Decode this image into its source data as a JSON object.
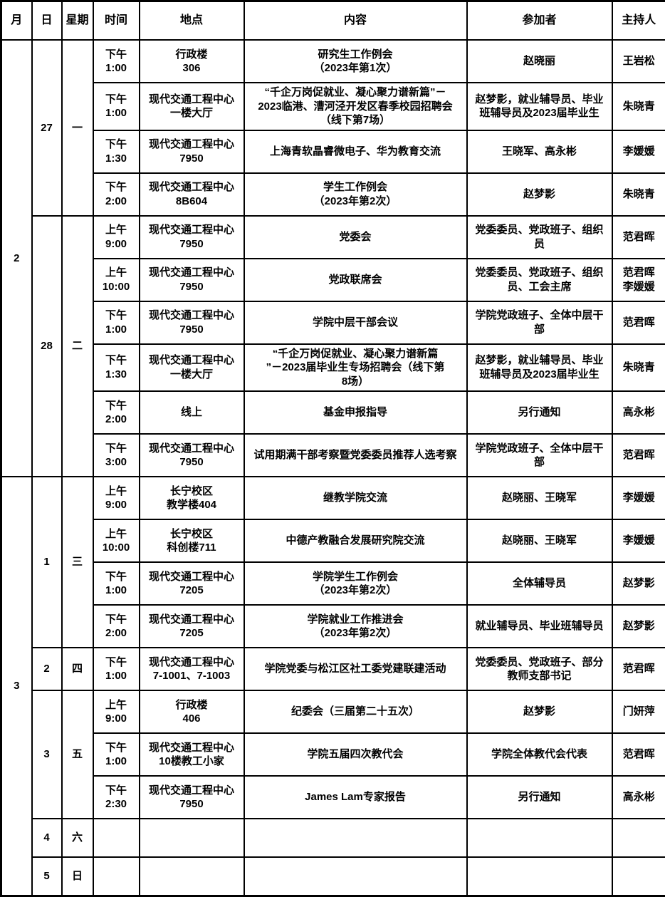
{
  "headers": [
    "月",
    "日",
    "星期",
    "时间",
    "地点",
    "内容",
    "参加者",
    "主持人"
  ],
  "months": [
    {
      "label": "2"
    },
    {
      "label": "3"
    }
  ],
  "days": [
    {
      "day": "27",
      "weekday": "一"
    },
    {
      "day": "28",
      "weekday": "二"
    },
    {
      "day": "1",
      "weekday": "三"
    },
    {
      "day": "2",
      "weekday": "四"
    },
    {
      "day": "3",
      "weekday": "五"
    },
    {
      "day": "4",
      "weekday": "六"
    },
    {
      "day": "5",
      "weekday": "日"
    }
  ],
  "rows": [
    {
      "time": "下午\n1:00",
      "location": "行政楼\n306",
      "content": "研究生工作例会\n（2023年第1次）",
      "participants": "赵晓丽",
      "host": "王岩松"
    },
    {
      "time": "下午\n1:00",
      "location": "现代交通工程中心\n一楼大厅",
      "content": "“千企万岗促就业、凝心聚力谱新篇”－\n2023临港、漕河泾开发区春季校园招聘会\n（线下第7场）",
      "participants": "赵梦影，就业辅导员、毕业\n班辅导员及2023届毕业生",
      "host": "朱晓青"
    },
    {
      "time": "下午\n1:30",
      "location": "现代交通工程中心\n7950",
      "content": "上海青软晶睿微电子、华为教育交流",
      "participants": "王晓军、高永彬",
      "host": "李媛媛"
    },
    {
      "time": "下午\n2:00",
      "location": "现代交通工程中心\n8B604",
      "content": "学生工作例会\n（2023年第2次）",
      "participants": "赵梦影",
      "host": "朱晓青"
    },
    {
      "time": "上午\n9:00",
      "location": "现代交通工程中心\n7950",
      "content": "党委会",
      "participants": "党委委员、党政班子、组织\n员",
      "host": "范君晖"
    },
    {
      "time": "上午\n10:00",
      "location": "现代交通工程中心\n7950",
      "content": "党政联席会",
      "participants": "党委委员、党政班子、组织\n员、工会主席",
      "host": "范君晖\n李媛媛"
    },
    {
      "time": "下午\n1:00",
      "location": "现代交通工程中心\n7950",
      "content": "学院中层干部会议",
      "participants": "学院党政班子、全体中层干\n部",
      "host": "范君晖"
    },
    {
      "time": "下午\n1:30",
      "location": "现代交通工程中心\n一楼大厅",
      "content": "“千企万岗促就业、凝心聚力谱新篇\n”－2023届毕业生专场招聘会（线下第\n8场）",
      "participants": "赵梦影，就业辅导员、毕业\n班辅导员及2023届毕业生",
      "host": "朱晓青"
    },
    {
      "time": "下午\n2:00",
      "location": "线上",
      "content": "基金申报指导",
      "participants": "另行通知",
      "host": "高永彬"
    },
    {
      "time": "下午\n3:00",
      "location": "现代交通工程中心\n7950",
      "content": "试用期满干部考察暨党委委员推荐人选考察",
      "participants": "学院党政班子、全体中层干\n部",
      "host": "范君晖"
    },
    {
      "time": "上午\n9:00",
      "location": "长宁校区\n教学楼404",
      "content": "继教学院交流",
      "participants": "赵晓丽、王晓军",
      "host": "李媛媛"
    },
    {
      "time": "上午\n10:00",
      "location": "长宁校区\n科创楼711",
      "content": "中德产教融合发展研究院交流",
      "participants": "赵晓丽、王晓军",
      "host": "李媛媛"
    },
    {
      "time": "下午\n1:00",
      "location": "现代交通工程中心\n7205",
      "content": "学院学生工作例会\n（2023年第2次）",
      "participants": "全体辅导员",
      "host": "赵梦影"
    },
    {
      "time": "下午\n2:00",
      "location": "现代交通工程中心\n7205",
      "content": "学院就业工作推进会\n（2023年第2次）",
      "participants": "就业辅导员、毕业班辅导员",
      "host": "赵梦影"
    },
    {
      "time": "下午\n1:00",
      "location": "现代交通工程中心\n7-1001、7-1003",
      "content": "学院党委与松江区社工委党建联建活动",
      "participants": "党委委员、党政班子、部分\n教师支部书记",
      "host": "范君晖"
    },
    {
      "time": "上午\n9:00",
      "location": "行政楼\n406",
      "content": "纪委会（三届第二十五次）",
      "participants": "赵梦影",
      "host": "门妍萍"
    },
    {
      "time": "下午\n1:00",
      "location": "现代交通工程中心\n10楼教工小家",
      "content": "学院五届四次教代会",
      "participants": "学院全体教代会代表",
      "host": "范君晖"
    },
    {
      "time": "下午\n2:30",
      "location": "现代交通工程中心\n7950",
      "content": "James Lam专家报告",
      "participants": "另行通知",
      "host": "高永彬"
    },
    {
      "time": "",
      "location": "",
      "content": "",
      "participants": "",
      "host": ""
    },
    {
      "time": "",
      "location": "",
      "content": "",
      "participants": "",
      "host": ""
    }
  ]
}
